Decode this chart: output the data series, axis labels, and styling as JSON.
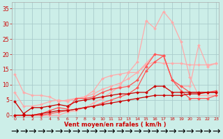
{
  "background_color": "#cceee8",
  "grid_color": "#aacccc",
  "text_color": "#cc0000",
  "xlabel": "Vent moyen/en rafales ( km/h )",
  "ylabel_ticks": [
    0,
    5,
    10,
    15,
    20,
    25,
    30,
    35
  ],
  "xtick_labels": [
    "0",
    "1",
    "2",
    "3",
    "4",
    "5",
    "6",
    "7",
    "8",
    "9",
    "10",
    "11",
    "12",
    "13",
    "14",
    "15",
    "16",
    "17",
    "18",
    "19",
    "20",
    "21",
    "22",
    "23"
  ],
  "xlim": [
    -0.3,
    23.3
  ],
  "ylim": [
    -0.5,
    37
  ],
  "series": [
    {
      "x": [
        0,
        1,
        2,
        3,
        4,
        5,
        6,
        7,
        8,
        9,
        10,
        11,
        12,
        13,
        14,
        15,
        16,
        17,
        18,
        19,
        20,
        21,
        22,
        23
      ],
      "y": [
        4.5,
        0.5,
        2.5,
        2.5,
        3.0,
        3.5,
        3.0,
        4.5,
        5.0,
        5.5,
        6.0,
        6.5,
        7.0,
        7.0,
        7.5,
        7.5,
        9.5,
        9.5,
        7.5,
        7.5,
        7.5,
        7.5,
        7.5,
        7.5
      ],
      "color": "#cc0000",
      "lw": 0.9,
      "marker": "D",
      "ms": 2.0,
      "linestyle": "-",
      "zorder": 5
    },
    {
      "x": [
        0,
        1,
        2,
        3,
        4,
        5,
        6,
        7,
        8,
        9,
        10,
        11,
        12,
        13,
        14,
        15,
        16,
        17,
        18,
        19,
        20,
        21,
        22,
        23
      ],
      "y": [
        0,
        0,
        0,
        0.5,
        1.0,
        1.5,
        1.5,
        2.0,
        2.5,
        3.0,
        3.5,
        4.0,
        4.5,
        5.0,
        5.5,
        6.0,
        6.5,
        6.5,
        6.5,
        6.5,
        7.0,
        7.0,
        7.5,
        7.5
      ],
      "color": "#cc0000",
      "lw": 0.9,
      "marker": "D",
      "ms": 2.0,
      "linestyle": "-",
      "zorder": 5
    },
    {
      "x": [
        0,
        1,
        2,
        3,
        4,
        5,
        6,
        7,
        8,
        9,
        10,
        11,
        12,
        13,
        14,
        15,
        16,
        17,
        18,
        19,
        20,
        21,
        22,
        23
      ],
      "y": [
        13.5,
        7.5,
        6.5,
        6.5,
        6.0,
        4.5,
        5.0,
        5.5,
        6.0,
        8.0,
        12.0,
        13.0,
        13.5,
        14.0,
        14.0,
        17.0,
        20.0,
        19.5,
        11.5,
        9.5,
        9.5,
        23.0,
        16.0,
        17.0
      ],
      "color": "#ffaaaa",
      "lw": 0.9,
      "marker": "D",
      "ms": 2.0,
      "linestyle": "-",
      "zorder": 3
    },
    {
      "x": [
        0,
        1,
        2,
        3,
        4,
        5,
        6,
        7,
        8,
        9,
        10,
        11,
        12,
        13,
        14,
        15,
        16,
        17,
        18,
        19,
        20,
        21,
        22,
        23
      ],
      "y": [
        7.5,
        3.0,
        3.0,
        3.5,
        4.5,
        5.0,
        4.5,
        5.5,
        6.0,
        7.0,
        8.5,
        9.5,
        10.5,
        12.0,
        14.0,
        16.5,
        17.5,
        17.0,
        17.0,
        17.0,
        16.5,
        16.5,
        16.5,
        17.0
      ],
      "color": "#ffaaaa",
      "lw": 0.9,
      "marker": "D",
      "ms": 2.0,
      "linestyle": "-",
      "zorder": 3
    },
    {
      "x": [
        0,
        1,
        2,
        3,
        4,
        5,
        6,
        7,
        8,
        9,
        10,
        11,
        12,
        13,
        14,
        15,
        16,
        17,
        18,
        19,
        20,
        21,
        22,
        23
      ],
      "y": [
        0,
        0,
        0,
        0.5,
        1.5,
        2.5,
        2.0,
        5.5,
        5.5,
        6.0,
        7.5,
        8.5,
        9.0,
        9.5,
        11.5,
        16.0,
        20.0,
        19.5,
        11.5,
        9.5,
        7.5,
        7.5,
        7.5,
        8.0
      ],
      "color": "#ff5555",
      "lw": 0.9,
      "marker": "D",
      "ms": 2.0,
      "linestyle": "-",
      "zorder": 4
    },
    {
      "x": [
        0,
        1,
        2,
        3,
        4,
        5,
        6,
        7,
        8,
        9,
        10,
        11,
        12,
        13,
        14,
        15,
        16,
        17,
        18,
        19,
        20,
        21,
        22,
        23
      ],
      "y": [
        0,
        0,
        0,
        0,
        0.5,
        1.0,
        1.5,
        2.0,
        2.5,
        3.0,
        4.0,
        5.0,
        6.0,
        7.0,
        9.0,
        14.5,
        17.5,
        19.5,
        11.5,
        8.0,
        5.5,
        5.5,
        5.5,
        6.5
      ],
      "color": "#ff5555",
      "lw": 0.9,
      "marker": "D",
      "ms": 2.0,
      "linestyle": "-",
      "zorder": 4
    },
    {
      "x": [
        0,
        1,
        2,
        3,
        4,
        5,
        6,
        7,
        8,
        9,
        10,
        11,
        12,
        13,
        14,
        15,
        16,
        17,
        18,
        19,
        20,
        21,
        22,
        23
      ],
      "y": [
        0,
        0,
        0,
        0,
        0,
        0,
        1.0,
        1.5,
        2.5,
        4.0,
        5.5,
        7.5,
        9.5,
        14.0,
        17.5,
        31.0,
        28.5,
        34.0,
        30.5,
        24.0,
        12.5,
        6.5,
        6.5,
        6.5
      ],
      "color": "#ffaaaa",
      "lw": 0.9,
      "marker": "D",
      "ms": 2.0,
      "linestyle": "-",
      "zorder": 2
    }
  ]
}
